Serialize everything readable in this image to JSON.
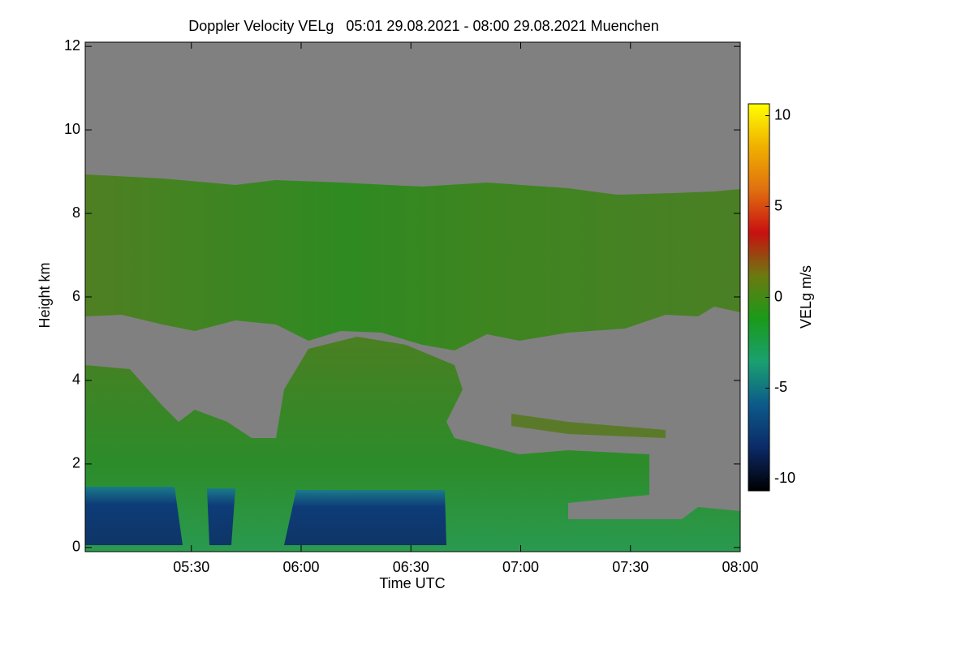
{
  "chart_data": {
    "type": "heatmap",
    "title": "Doppler Velocity VELg   05:01 29.08.2021 - 08:00 29.08.2021 Muenchen",
    "x_label": "Time UTC",
    "y_label": "Height km",
    "colorbar_label": "VELg m/s",
    "xlim": [
      "05:01",
      "08:00"
    ],
    "xticks": [
      "05:30",
      "06:00",
      "06:30",
      "07:00",
      "07:30",
      "08:00"
    ],
    "ylim": [
      -0.1,
      12.1
    ],
    "yticks": [
      0,
      2,
      4,
      6,
      8,
      10,
      12
    ],
    "clim": [
      -10.65,
      10.65
    ],
    "cticks": [
      -10,
      -5,
      0,
      5,
      10
    ],
    "colorscale": [
      "#000000",
      "#0b2a66",
      "#0d5a8a",
      "#1aa070",
      "#1a9a1a",
      "#6b7a10",
      "#c81010",
      "#e07010",
      "#f0b000",
      "#ffff00"
    ]
  }
}
